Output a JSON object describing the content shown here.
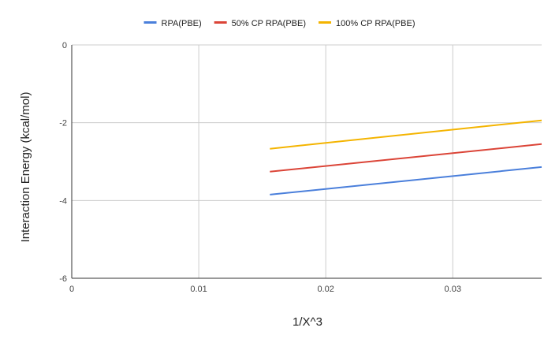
{
  "chart_data": {
    "type": "line",
    "title": "",
    "xlabel": "1/X^3",
    "ylabel": "Interaction Energy (kcal/mol)",
    "xlim": [
      0,
      0.037
    ],
    "ylim": [
      -6,
      0
    ],
    "x_ticks": [
      0,
      0.01,
      0.02,
      0.03
    ],
    "x_tick_labels": [
      "0",
      "0.01",
      "0.02",
      "0.03"
    ],
    "y_ticks": [
      0,
      -2,
      -4,
      -6
    ],
    "y_tick_labels": [
      "0",
      "-2",
      "-4",
      "-6"
    ],
    "grid": true,
    "legend_position": "top",
    "series": [
      {
        "name": "RPA(PBE)",
        "color": "#4a7fdb",
        "x": [
          0.0156,
          0.037
        ],
        "y": [
          -3.85,
          -3.14
        ]
      },
      {
        "name": "50% CP RPA(PBE)",
        "color": "#db4437",
        "x": [
          0.0156,
          0.037
        ],
        "y": [
          -3.26,
          -2.55
        ]
      },
      {
        "name": "100% CP RPA(PBE)",
        "color": "#f4b400",
        "x": [
          0.0156,
          0.037
        ],
        "y": [
          -2.67,
          -1.94
        ]
      }
    ]
  }
}
